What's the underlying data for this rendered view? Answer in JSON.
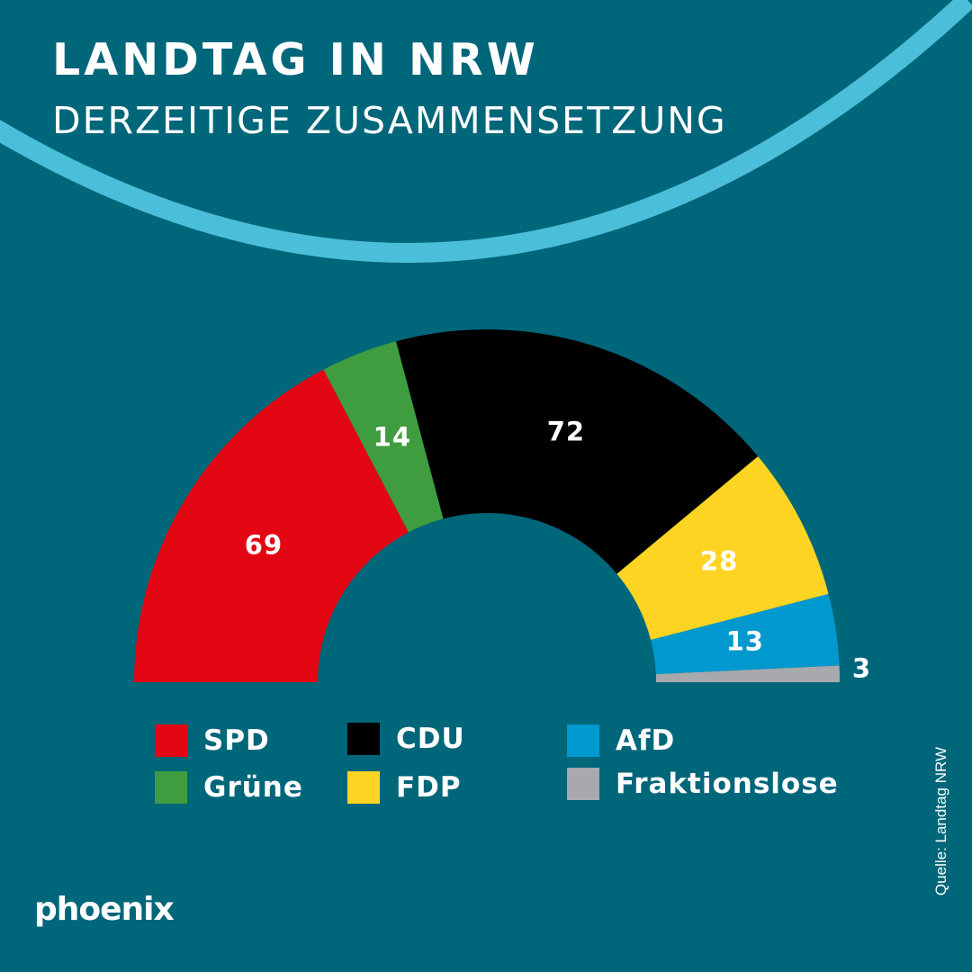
{
  "header": {
    "title": "LANDTAG IN NRW",
    "subtitle": "DERZEITIGE ZUSAMMENSETZUNG"
  },
  "colors": {
    "background": "#00667a",
    "arc": "#4bbfd9"
  },
  "chart_data": {
    "type": "pie",
    "variant": "semicircle-parliament",
    "title": "LANDTAG IN NRW",
    "subtitle": "DERZEITIGE ZUSAMMENSETZUNG",
    "legend_position": "bottom",
    "categories": [
      "SPD",
      "Grüne",
      "CDU",
      "FDP",
      "AfD",
      "Fraktionslose"
    ],
    "values": [
      69,
      14,
      72,
      28,
      13,
      3
    ],
    "labels": [
      "69",
      "14",
      "72",
      "28",
      "13",
      "3"
    ],
    "colors": [
      "#e30613",
      "#3f9c3f",
      "#000000",
      "#fdd422",
      "#0099cf",
      "#a7a9ac"
    ],
    "label_colors": [
      "#ffffff",
      "#ffffff",
      "#ffffff",
      "#ffffff",
      "#ffffff",
      "#ffffff"
    ]
  },
  "legend": [
    {
      "label": "SPD",
      "color": "#e30613"
    },
    {
      "label": "Grüne",
      "color": "#3f9c3f"
    },
    {
      "label": "CDU",
      "color": "#000000"
    },
    {
      "label": "FDP",
      "color": "#fdd422"
    },
    {
      "label": "AfD",
      "color": "#0099cf"
    },
    {
      "label": "Fraktionslose",
      "color": "#a7a9ac"
    }
  ],
  "source": "Quelle: Landtag NRW",
  "brand": "phoenix"
}
